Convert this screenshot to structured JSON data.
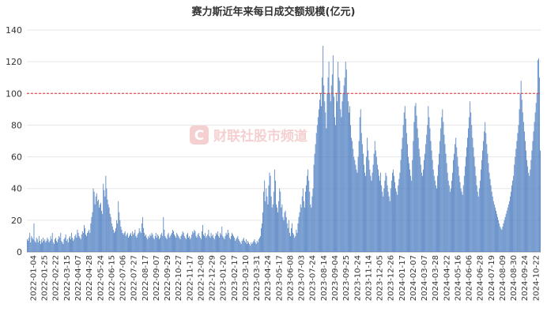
{
  "chart_data": {
    "type": "bar",
    "title": "赛力斯近年来每日成交额规模(亿元)",
    "xlabel": "",
    "ylabel": "",
    "ylim": [
      0,
      140
    ],
    "yticks": [
      0,
      20,
      40,
      60,
      80,
      100,
      120,
      140
    ],
    "grid": true,
    "legend": "none",
    "reference_line": {
      "value": 100,
      "color": "#e03030",
      "style": "dashed"
    },
    "bar_color": "#4f7fc1",
    "x_tick_labels": [
      "2022-01-04",
      "2022-01-25",
      "2022-02-22",
      "2022-03-15",
      "2022-04-07",
      "2022-04-28",
      "2022-05-24",
      "2022-06-15",
      "2022-07-06",
      "2022-07-27",
      "2022-08-17",
      "2022-09-07",
      "2022-09-29",
      "2022-10-27",
      "2022-11-17",
      "2022-12-08",
      "2022-12-29",
      "2023-01-20",
      "2023-02-17",
      "2023-03-10",
      "2023-03-31",
      "2023-04-24",
      "2023-05-17",
      "2023-06-08",
      "2023-07-03",
      "2023-07-24",
      "2023-08-14",
      "2023-09-04",
      "2023-09-25",
      "2023-10-24",
      "2023-11-14",
      "2023-12-05",
      "2023-12-26",
      "2024-01-17",
      "2024-02-07",
      "2024-03-07",
      "2024-03-28",
      "2024-04-22",
      "2024-05-16",
      "2024-06-06",
      "2024-06-28",
      "2024-07-19",
      "2024-08-09",
      "2024-08-30",
      "2024-09-24",
      "2024-10-22"
    ],
    "series": [
      {
        "values": [
          8,
          7,
          9,
          12,
          6,
          10,
          9,
          8,
          18,
          7,
          6,
          9,
          8,
          6,
          10,
          7,
          5,
          8,
          6,
          9,
          7,
          8,
          6,
          7,
          9,
          8,
          6,
          7,
          10,
          8,
          12,
          6,
          5,
          8,
          9,
          7,
          6,
          8,
          10,
          9,
          12,
          7,
          6,
          5,
          8,
          9,
          11,
          7,
          8,
          6,
          9,
          10,
          8,
          12,
          9,
          7,
          8,
          10,
          11,
          9,
          14,
          12,
          10,
          9,
          8,
          11,
          13,
          12,
          17,
          15,
          11,
          10,
          12,
          13,
          14,
          12,
          18,
          22,
          25,
          40,
          38,
          30,
          35,
          37,
          32,
          33,
          28,
          30,
          31,
          26,
          24,
          43,
          39,
          35,
          48,
          40,
          33,
          30,
          28,
          24,
          22,
          18,
          16,
          14,
          12,
          13,
          15,
          20,
          18,
          32,
          25,
          20,
          16,
          14,
          12,
          11,
          12,
          13,
          10,
          11,
          12,
          9,
          10,
          11,
          12,
          10,
          13,
          11,
          12,
          14,
          10,
          9,
          11,
          12,
          15,
          13,
          12,
          18,
          22,
          15,
          12,
          10,
          11,
          9,
          8,
          10,
          9,
          11,
          10,
          12,
          11,
          9,
          8,
          10,
          12,
          9,
          11,
          10,
          8,
          9,
          11,
          12,
          10,
          22,
          14,
          10,
          9,
          8,
          11,
          12,
          9,
          10,
          11,
          12,
          14,
          13,
          11,
          10,
          9,
          12,
          11,
          10,
          9,
          8,
          10,
          11,
          13,
          12,
          10,
          9,
          8,
          11,
          12,
          9,
          10,
          8,
          9,
          11,
          13,
          12,
          14,
          13,
          10,
          9,
          11,
          12,
          10,
          9,
          8,
          13,
          17,
          11,
          10,
          12,
          9,
          10,
          11,
          14,
          10,
          9,
          12,
          10,
          11,
          9,
          8,
          10,
          12,
          11,
          13,
          10,
          9,
          12,
          11,
          16,
          10,
          9,
          8,
          10,
          12,
          11,
          14,
          12,
          9,
          8,
          10,
          12,
          11,
          10,
          9,
          7,
          8,
          9,
          10,
          8,
          7,
          6,
          5,
          7,
          8,
          9,
          7,
          6,
          8,
          5,
          7,
          6,
          5,
          4,
          6,
          5,
          6,
          7,
          8,
          6,
          5,
          7,
          6,
          8,
          9,
          10,
          15,
          18,
          25,
          38,
          45,
          32,
          40,
          35,
          30,
          42,
          50,
          48,
          35,
          28,
          30,
          38,
          52,
          45,
          30,
          28,
          25,
          32,
          40,
          38,
          28,
          30,
          22,
          20,
          25,
          26,
          22,
          18,
          15,
          20,
          12,
          10,
          15,
          18,
          12,
          11,
          9,
          10,
          14,
          12,
          18,
          22,
          25,
          30,
          28,
          35,
          40,
          32,
          28,
          38,
          42,
          48,
          52,
          45,
          38,
          30,
          28,
          35,
          40,
          55,
          62,
          68,
          75,
          80,
          85,
          90,
          96,
          100,
          92,
          110,
          130,
          105,
          95,
          88,
          78,
          100,
          110,
          120,
          100,
          95,
          105,
          112,
          124,
          98,
          85,
          80,
          100,
          95,
          120,
          110,
          108,
          90,
          85,
          95,
          100,
          105,
          110,
          120,
          115,
          100,
          95,
          88,
          92,
          80,
          72,
          70,
          65,
          60,
          58,
          55,
          52,
          50,
          60,
          70,
          85,
          90,
          75,
          68,
          62,
          55,
          50,
          48,
          60,
          72,
          64,
          58,
          52,
          48,
          45,
          50,
          55,
          62,
          70,
          64,
          60,
          55,
          52,
          48,
          45,
          50,
          42,
          38,
          35,
          40,
          45,
          50,
          48,
          42,
          38,
          35,
          32,
          40,
          45,
          50,
          52,
          48,
          44,
          40,
          38,
          36,
          42,
          46,
          50,
          58,
          65,
          72,
          80,
          88,
          92,
          84,
          75,
          68,
          60,
          56,
          52,
          48,
          45,
          58,
          70,
          82,
          92,
          94,
          86,
          78,
          72,
          65,
          60,
          55,
          50,
          48,
          52,
          58,
          62,
          68,
          74,
          80,
          92,
          85,
          78,
          70,
          64,
          58,
          52,
          48,
          45,
          42,
          40,
          48,
          55,
          62,
          70,
          78,
          85,
          90,
          82,
          74,
          68,
          62,
          56,
          50,
          45,
          42,
          38,
          40,
          45,
          50,
          58,
          62,
          68,
          72,
          66,
          60,
          54,
          48,
          44,
          40,
          38,
          36,
          42,
          48,
          54,
          60,
          66,
          72,
          78,
          85,
          95,
          88,
          80,
          72,
          66,
          60,
          54,
          48,
          42,
          38,
          35,
          40,
          45,
          52,
          58,
          64,
          70,
          76,
          82,
          75,
          68,
          62,
          56,
          50,
          46,
          42,
          38,
          35,
          32,
          30,
          28,
          26,
          24,
          22,
          20,
          18,
          16,
          15,
          14,
          16,
          18,
          20,
          22,
          24,
          26,
          28,
          30,
          32,
          35,
          38,
          42,
          45,
          48,
          55,
          60,
          65,
          70,
          75,
          80,
          90,
          100,
          108,
          96,
          88,
          82,
          76,
          70,
          64,
          58,
          54,
          50,
          48,
          52,
          58,
          64,
          70,
          76,
          82,
          88,
          94,
          100,
          121,
          122,
          110,
          64
        ]
      }
    ]
  }
}
